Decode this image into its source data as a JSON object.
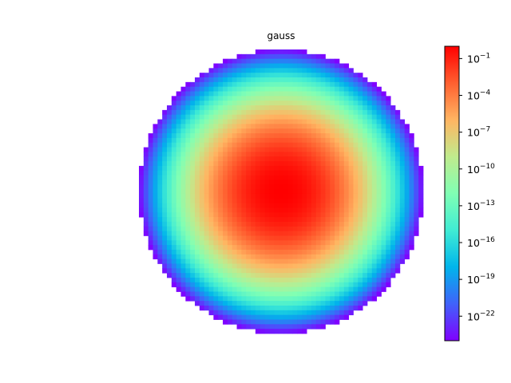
{
  "chart_data": {
    "type": "heatmap",
    "title": "gauss",
    "description_of_shape": "circular field, peak at center, decaying outward",
    "grid": false,
    "colormap": "rainbow",
    "color_scale": "log",
    "colorbar": {
      "position": "right",
      "range": [
        1e-24,
        1
      ],
      "ticks": [
        {
          "base": "10",
          "exp": "−1",
          "value": 0.1
        },
        {
          "base": "10",
          "exp": "−4",
          "value": 0.0001
        },
        {
          "base": "10",
          "exp": "−7",
          "value": 1e-07
        },
        {
          "base": "10",
          "exp": "−10",
          "value": 1e-10
        },
        {
          "base": "10",
          "exp": "−13",
          "value": 1e-13
        },
        {
          "base": "10",
          "exp": "−16",
          "value": 1e-16
        },
        {
          "base": "10",
          "exp": "−19",
          "value": 1e-19
        },
        {
          "base": "10",
          "exp": "−22",
          "value": 1e-22
        }
      ],
      "colors": [
        "#8000ff",
        "#4062fa",
        "#00b5eb",
        "#40ecd4",
        "#80ffb4",
        "#c0eb8d",
        "#ffb562",
        "#ff6030",
        "#ff0000"
      ]
    },
    "field": {
      "peak_value": 1,
      "edge_value": 1e-24,
      "grid_size": 61
    }
  }
}
